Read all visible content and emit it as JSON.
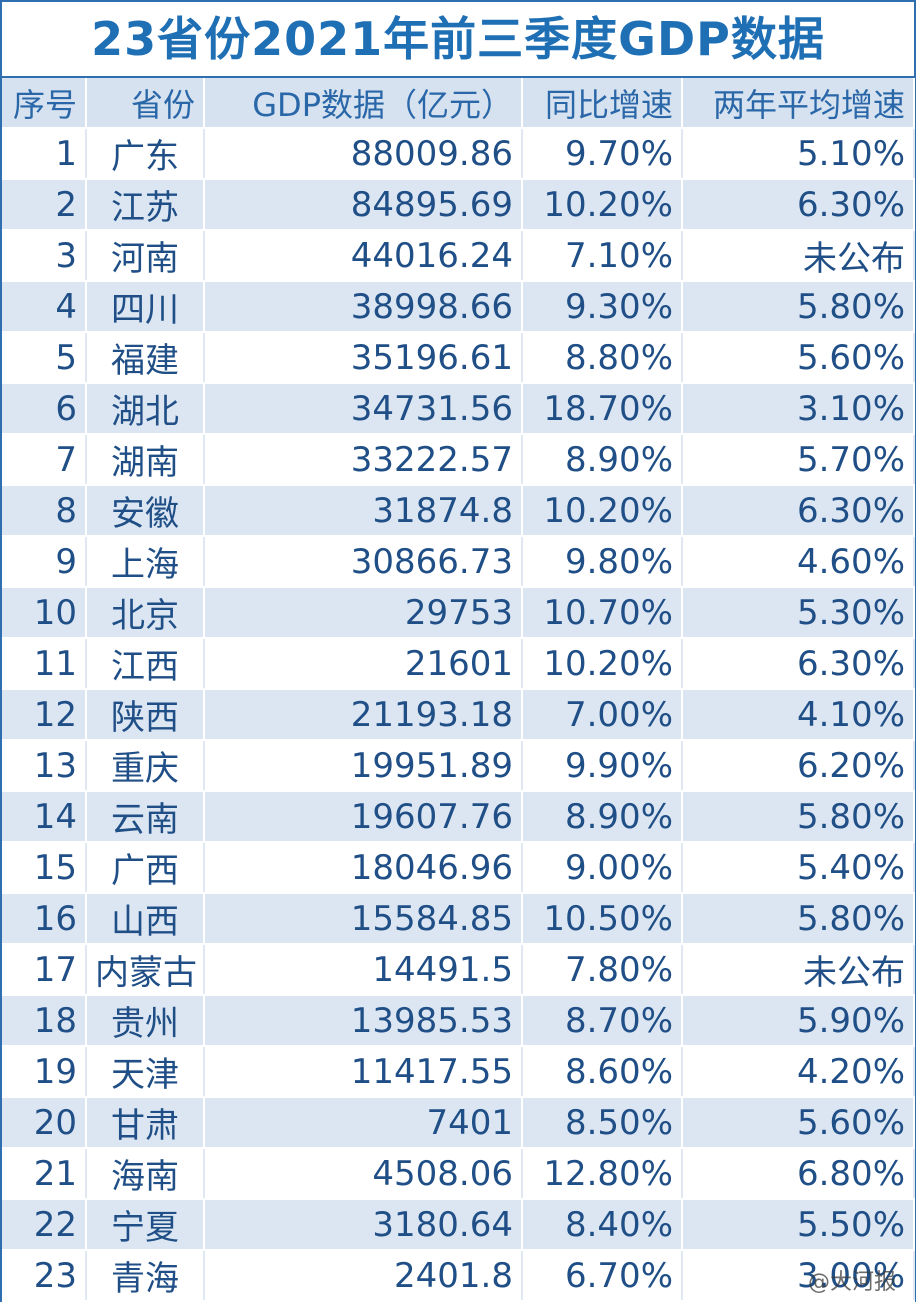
{
  "title": "23省份2021年前三季度GDP数据",
  "table": {
    "header": [
      "序号",
      "省份",
      "GDP数据（亿元）",
      "同比增速",
      "两年平均增速"
    ],
    "rows": [
      [
        "1",
        "广东",
        "88009.86",
        "9.70%",
        "5.10%"
      ],
      [
        "2",
        "江苏",
        "84895.69",
        "10.20%",
        "6.30%"
      ],
      [
        "3",
        "河南",
        "44016.24",
        "7.10%",
        "未公布"
      ],
      [
        "4",
        "四川",
        "38998.66",
        "9.30%",
        "5.80%"
      ],
      [
        "5",
        "福建",
        "35196.61",
        "8.80%",
        "5.60%"
      ],
      [
        "6",
        "湖北",
        "34731.56",
        "18.70%",
        "3.10%"
      ],
      [
        "7",
        "湖南",
        "33222.57",
        "8.90%",
        "5.70%"
      ],
      [
        "8",
        "安徽",
        "31874.8",
        "10.20%",
        "6.30%"
      ],
      [
        "9",
        "上海",
        "30866.73",
        "9.80%",
        "4.60%"
      ],
      [
        "10",
        "北京",
        "29753",
        "10.70%",
        "5.30%"
      ],
      [
        "11",
        "江西",
        "21601",
        "10.20%",
        "6.30%"
      ],
      [
        "12",
        "陕西",
        "21193.18",
        "7.00%",
        "4.10%"
      ],
      [
        "13",
        "重庆",
        "19951.89",
        "9.90%",
        "6.20%"
      ],
      [
        "14",
        "云南",
        "19607.76",
        "8.90%",
        "5.80%"
      ],
      [
        "15",
        "广西",
        "18046.96",
        "9.00%",
        "5.40%"
      ],
      [
        "16",
        "山西",
        "15584.85",
        "10.50%",
        "5.80%"
      ],
      [
        "17",
        "内蒙古",
        "14491.5",
        "7.80%",
        "未公布"
      ],
      [
        "18",
        "贵州",
        "13985.53",
        "8.70%",
        "5.90%"
      ],
      [
        "19",
        "天津",
        "11417.55",
        "8.60%",
        "4.20%"
      ],
      [
        "20",
        "甘肃",
        "7401",
        "8.50%",
        "5.60%"
      ],
      [
        "21",
        "海南",
        "4508.06",
        "12.80%",
        "6.80%"
      ],
      [
        "22",
        "宁夏",
        "3180.64",
        "8.40%",
        "5.50%"
      ],
      [
        "23",
        "青海",
        "2401.8",
        "6.70%",
        "3.00%"
      ]
    ]
  },
  "watermark": "@大河报"
}
